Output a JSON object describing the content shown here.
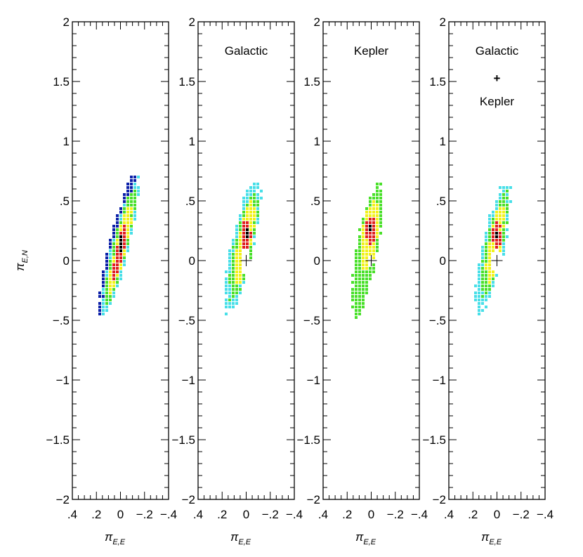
{
  "chart_data": {
    "type": "scatter",
    "description_shared": {
      "xlabel": "π",
      "xlabel_sub": "E,E",
      "ylabel": "π",
      "ylabel_sub": "E,N",
      "xlim": [
        0.4,
        -0.4
      ],
      "ylim": [
        -2,
        2
      ],
      "x_tick_values": [
        0.4,
        0.2,
        0,
        -0.2,
        -0.4
      ],
      "x_tick_labels": [
        ".4",
        ".2",
        "0",
        "−.2",
        "−.4"
      ],
      "y_tick_values": [
        2,
        1.5,
        1,
        0.5,
        0,
        -0.5,
        -1,
        -1.5,
        -2
      ],
      "y_tick_labels": [
        "2",
        "1.5",
        "1",
        ".5",
        "0",
        "−.5",
        "−1",
        "−1.5",
        "−2"
      ],
      "grid": false,
      "contour_colors": [
        "#000000",
        "#e02020",
        "#f2f21a",
        "#49e02a",
        "#48dfe8",
        "#0b1fa8"
      ]
    },
    "panels": [
      {
        "title_lines": [],
        "ylabel_shown": true,
        "marker_at_origin": false,
        "layers": [
          {
            "color": "#0b1fa8",
            "cx": 0.02,
            "cy": 0.12,
            "rx": 0.075,
            "ry": 0.6,
            "angle_deg": 14
          },
          {
            "color": "#48dfe8",
            "cx": 0.0,
            "cy": 0.1,
            "rx": 0.07,
            "ry": 0.57,
            "angle_deg": 14
          },
          {
            "color": "#49e02a",
            "cx": 0.0,
            "cy": 0.1,
            "rx": 0.06,
            "ry": 0.5,
            "angle_deg": 14
          },
          {
            "color": "#f2f21a",
            "cx": 0.0,
            "cy": 0.09,
            "rx": 0.045,
            "ry": 0.37,
            "angle_deg": 14
          },
          {
            "color": "#e02020",
            "cx": 0.0,
            "cy": 0.09,
            "rx": 0.03,
            "ry": 0.24,
            "angle_deg": 12
          },
          {
            "color": "#000000",
            "cx": -0.002,
            "cy": 0.13,
            "rx": 0.012,
            "ry": 0.1,
            "angle_deg": 8
          }
        ]
      },
      {
        "title_lines": [
          "Galactic"
        ],
        "ylabel_shown": false,
        "marker_at_origin": true,
        "layers": [
          {
            "color": "#48dfe8",
            "cx": 0.03,
            "cy": 0.12,
            "rx": 0.095,
            "ry": 0.55,
            "angle_deg": 12
          },
          {
            "color": "#49e02a",
            "cx": 0.02,
            "cy": 0.12,
            "rx": 0.075,
            "ry": 0.45,
            "angle_deg": 12
          },
          {
            "color": "#f2f21a",
            "cx": 0.01,
            "cy": 0.14,
            "rx": 0.055,
            "ry": 0.36,
            "angle_deg": 10
          },
          {
            "color": "#e02020",
            "cx": 0.0,
            "cy": 0.22,
            "rx": 0.04,
            "ry": 0.12,
            "angle_deg": 0
          },
          {
            "color": "#000000",
            "cx": -0.005,
            "cy": 0.23,
            "rx": 0.012,
            "ry": 0.04,
            "angle_deg": 0
          }
        ],
        "hole": {
          "cx": 0.0,
          "cy": -0.01,
          "rx": 0.04,
          "ry": 0.11
        }
      },
      {
        "title_lines": [
          "Kepler"
        ],
        "ylabel_shown": false,
        "marker_at_origin": true,
        "layers": [
          {
            "color": "#49e02a",
            "cx": 0.03,
            "cy": 0.1,
            "rx": 0.085,
            "ry": 0.56,
            "angle_deg": 10
          },
          {
            "color": "#f2f21a",
            "cx": 0.01,
            "cy": 0.2,
            "rx": 0.065,
            "ry": 0.3,
            "angle_deg": 6
          },
          {
            "color": "#e02020",
            "cx": 0.0,
            "cy": 0.25,
            "rx": 0.045,
            "ry": 0.12,
            "angle_deg": 0
          },
          {
            "color": "#000000",
            "cx": -0.005,
            "cy": 0.27,
            "rx": 0.015,
            "ry": 0.04,
            "angle_deg": 0
          }
        ],
        "hole": {
          "cx": 0.0,
          "cy": -0.01,
          "rx": 0.028,
          "ry": 0.05
        }
      },
      {
        "title_lines": [
          "Galactic",
          "+",
          "Kepler"
        ],
        "ylabel_shown": false,
        "marker_at_origin": true,
        "layers": [
          {
            "color": "#48dfe8",
            "cx": 0.03,
            "cy": 0.1,
            "rx": 0.09,
            "ry": 0.54,
            "angle_deg": 12
          },
          {
            "color": "#49e02a",
            "cx": 0.02,
            "cy": 0.12,
            "rx": 0.07,
            "ry": 0.44,
            "angle_deg": 12
          },
          {
            "color": "#f2f21a",
            "cx": 0.01,
            "cy": 0.14,
            "rx": 0.05,
            "ry": 0.33,
            "angle_deg": 10
          },
          {
            "color": "#e02020",
            "cx": 0.0,
            "cy": 0.21,
            "rx": 0.035,
            "ry": 0.11,
            "angle_deg": 0
          },
          {
            "color": "#000000",
            "cx": -0.005,
            "cy": 0.21,
            "rx": 0.01,
            "ry": 0.03,
            "angle_deg": 0
          }
        ],
        "hole": {
          "cx": 0.0,
          "cy": -0.01,
          "rx": 0.04,
          "ry": 0.11
        }
      }
    ]
  }
}
